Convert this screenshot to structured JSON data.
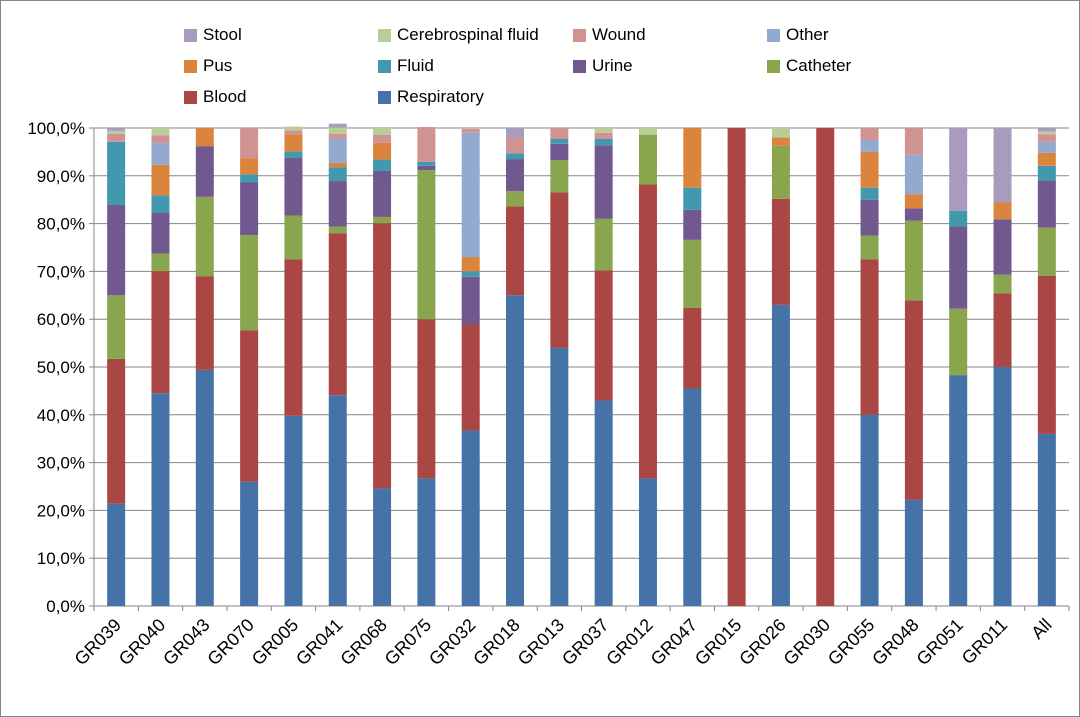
{
  "chart_data": {
    "type": "bar",
    "stacked": true,
    "y_axis": {
      "ylim": [
        0,
        100
      ],
      "ticks": [
        0,
        10,
        20,
        30,
        40,
        50,
        60,
        70,
        80,
        90,
        100
      ],
      "tick_labels": [
        "0,0%",
        "10,0%",
        "20,0%",
        "30,0%",
        "40,0%",
        "50,0%",
        "60,0%",
        "70,0%",
        "80,0%",
        "90,0%",
        "100,0%"
      ],
      "grid": true
    },
    "legend_position": "top",
    "categories": [
      "GR039",
      "GR040",
      "GR043",
      "GR070",
      "GR005",
      "GR041",
      "GR068",
      "GR075",
      "GR032",
      "GR018",
      "GR013",
      "GR037",
      "GR012",
      "GR047",
      "GR015",
      "GR026",
      "GR030",
      "GR055",
      "GR048",
      "GR051",
      "GR011",
      "All"
    ],
    "series": [
      {
        "name": "Respiratory",
        "color": "#4572A7",
        "values": [
          21.4,
          44.5,
          49.4,
          26.0,
          39.8,
          44.1,
          24.6,
          26.7,
          36.7,
          65.0,
          54.0,
          43.0,
          26.7,
          45.5,
          0,
          63.0,
          0,
          40.0,
          22.2,
          48.3,
          50.0,
          36.0
        ]
      },
      {
        "name": "Blood",
        "color": "#AA4643",
        "values": [
          30.3,
          25.6,
          19.6,
          31.7,
          32.7,
          33.9,
          55.5,
          33.3,
          22.2,
          18.6,
          32.5,
          27.2,
          61.5,
          16.9,
          100,
          22.2,
          100,
          32.5,
          41.7,
          0,
          15.4,
          33.1
        ]
      },
      {
        "name": "Catheter",
        "color": "#89A54E",
        "values": [
          13.3,
          3.6,
          16.6,
          19.9,
          9.2,
          1.4,
          1.3,
          31.2,
          0,
          3.2,
          6.8,
          10.8,
          10.4,
          14.2,
          0,
          11.1,
          0,
          5.0,
          16.7,
          13.9,
          3.9,
          10.1
        ]
      },
      {
        "name": "Urine",
        "color": "#71588F",
        "values": [
          18.9,
          8.6,
          10.6,
          11.0,
          12.1,
          9.5,
          9.6,
          0.9,
          10.0,
          6.7,
          3.4,
          15.4,
          0,
          6.3,
          0,
          0,
          0,
          7.5,
          2.6,
          17.2,
          11.6,
          9.8
        ]
      },
      {
        "name": "Fluid",
        "color": "#4198AF",
        "values": [
          13.2,
          3.6,
          0,
          1.7,
          1.3,
          2.9,
          2.4,
          0.8,
          1.1,
          1.2,
          1.0,
          1.3,
          0,
          4.6,
          0,
          0,
          0,
          2.5,
          0,
          3.3,
          0,
          3.1
        ]
      },
      {
        "name": "Pus",
        "color": "#DB843D",
        "values": [
          0,
          6.4,
          3.8,
          3.4,
          3.6,
          0.9,
          3.5,
          0,
          3.0,
          0,
          0,
          0,
          0,
          12.5,
          0,
          1.7,
          0,
          7.5,
          2.9,
          0,
          3.6,
          2.7
        ]
      },
      {
        "name": "Other",
        "color": "#93A9CF",
        "values": [
          0,
          4.6,
          0,
          0,
          0,
          5.1,
          0,
          0,
          26.0,
          0,
          0,
          0,
          0,
          0,
          0,
          0,
          0,
          2.5,
          8.3,
          0,
          0,
          2.3
        ]
      },
      {
        "name": "Wound",
        "color": "#D19392",
        "values": [
          1.7,
          1.6,
          0,
          6.3,
          0.8,
          1.0,
          1.7,
          7.3,
          0.8,
          3.3,
          2.3,
          1.3,
          0,
          0,
          0,
          0,
          0,
          2.5,
          5.6,
          0,
          0,
          1.6
        ]
      },
      {
        "name": "Cerebrospinal fluid",
        "color": "#B9CD96",
        "values": [
          0.6,
          1.5,
          0,
          0,
          0.8,
          1.3,
          1.4,
          0,
          0,
          0,
          0,
          1.0,
          1.4,
          0,
          0,
          2.0,
          0,
          0,
          0,
          0,
          0,
          0.6
        ]
      },
      {
        "name": "Stool",
        "color": "#A99BBD",
        "values": [
          0.6,
          0,
          0,
          0,
          0,
          0.8,
          0,
          0,
          0,
          2.0,
          0,
          0,
          0,
          0,
          0,
          0,
          0,
          0,
          0,
          17.3,
          15.5,
          0.7
        ]
      }
    ],
    "legend_order": [
      "Stool",
      "Cerebrospinal fluid",
      "Wound",
      "Other",
      "Pus",
      "Fluid",
      "Urine",
      "Catheter",
      "Blood",
      "Respiratory"
    ]
  }
}
